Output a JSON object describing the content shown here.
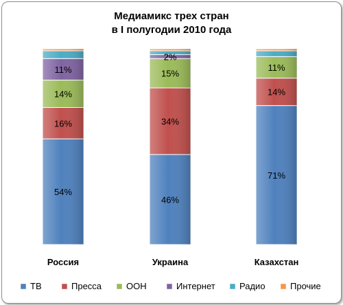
{
  "chart_data": {
    "type": "bar",
    "stacked": true,
    "percent": true,
    "title_lines": [
      "Медиамикс трех стран",
      "в I полугодии 2010 года"
    ],
    "categories": [
      "Россия",
      "Украина",
      "Казахстан"
    ],
    "ylim": [
      0,
      100
    ],
    "grid": false,
    "legend_position": "bottom",
    "series": [
      {
        "name": "ТВ",
        "color": "#4f81bd",
        "values": [
          54,
          46,
          71
        ],
        "labels": [
          "54%",
          "46%",
          "71%"
        ]
      },
      {
        "name": "Пресса",
        "color": "#c0504d",
        "values": [
          16,
          34,
          14
        ],
        "labels": [
          "16%",
          "34%",
          "14%"
        ]
      },
      {
        "name": "ООН",
        "color": "#9bbb59",
        "values": [
          14,
          15,
          11
        ],
        "labels": [
          "14%",
          "15%",
          "11%"
        ]
      },
      {
        "name": "Интернет",
        "color": "#8064a2",
        "values": [
          11,
          2,
          0
        ],
        "labels": [
          "11%",
          "2%",
          ""
        ]
      },
      {
        "name": "Радио",
        "color": "#4bacc6",
        "values": [
          4,
          2,
          3
        ],
        "labels": [
          "",
          "",
          ""
        ]
      },
      {
        "name": "Прочие",
        "color": "#f79646",
        "values": [
          1,
          1,
          1
        ],
        "labels": [
          "",
          "",
          ""
        ]
      }
    ]
  }
}
